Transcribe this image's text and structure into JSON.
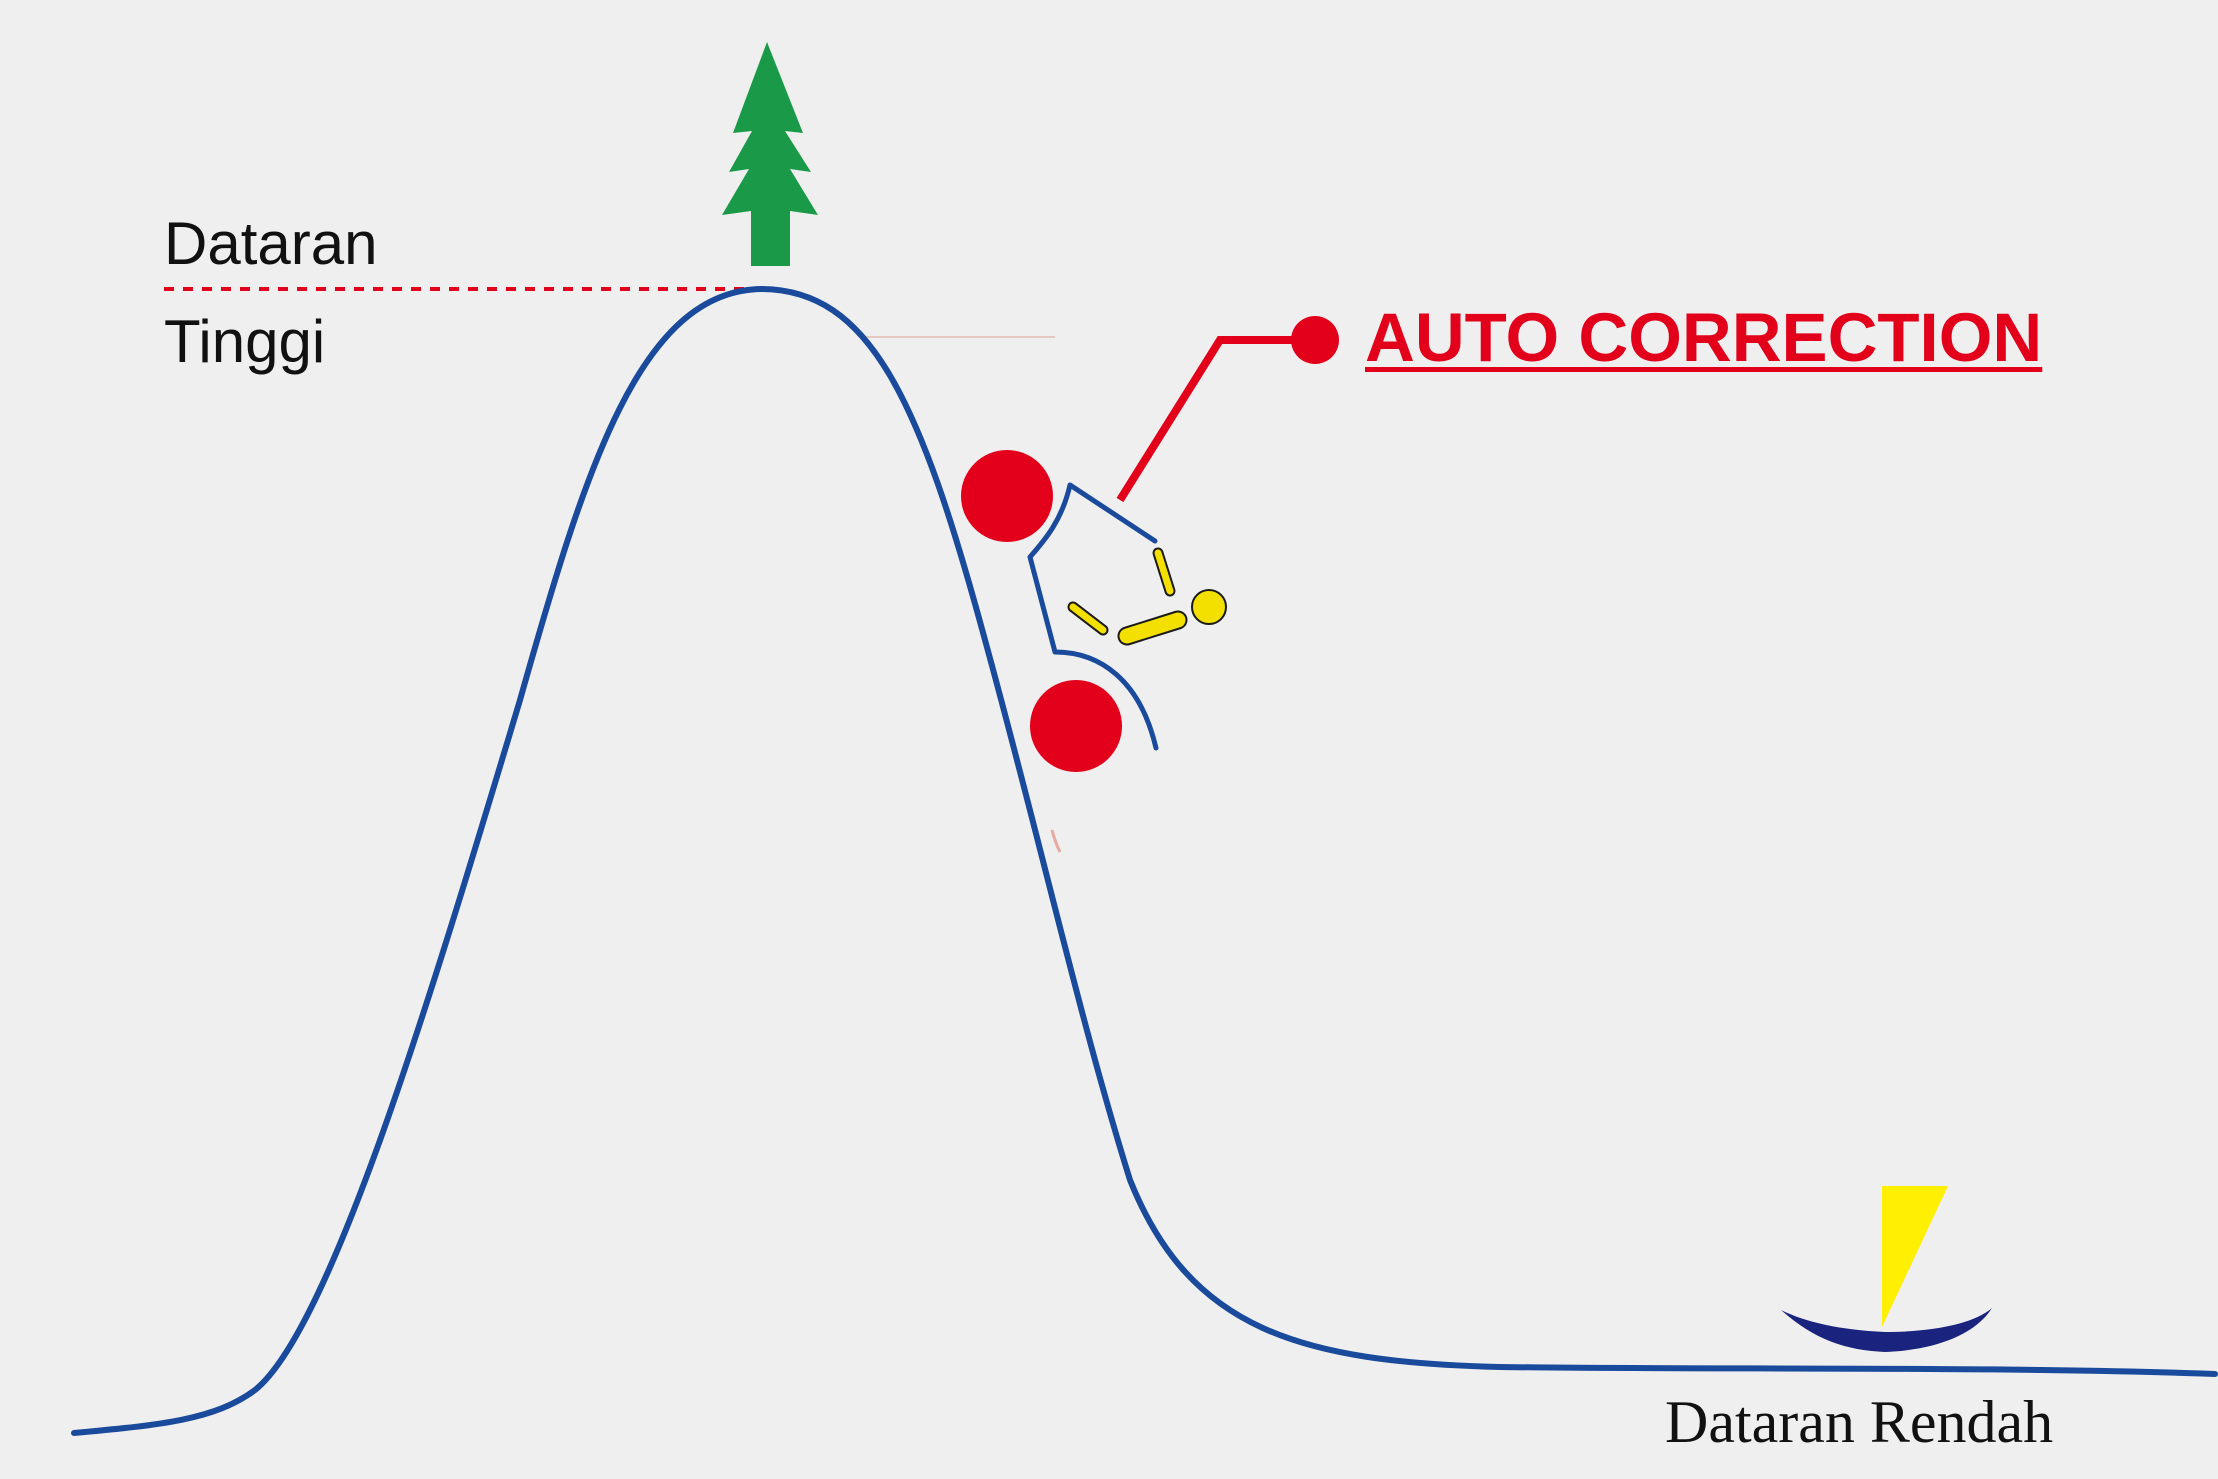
{
  "labels": {
    "highland_line1": "Dataran",
    "highland_line2": "Tinggi",
    "callout": "AUTO CORRECTION",
    "lowland": "Dataran Rendah"
  },
  "icons": {
    "summit": "pine-tree-icon",
    "rider": "motorcycle-rider-icon",
    "boat": "sailboat-icon"
  },
  "colors": {
    "background": "#efefef",
    "hill_line": "#1a4a9b",
    "callout_red": "#e2001a",
    "tree_green": "#1a9a48",
    "rider_yellow": "#f3e000",
    "boat_navy": "#1a237e",
    "sail_yellow": "#ffef00",
    "text": "#111111"
  }
}
